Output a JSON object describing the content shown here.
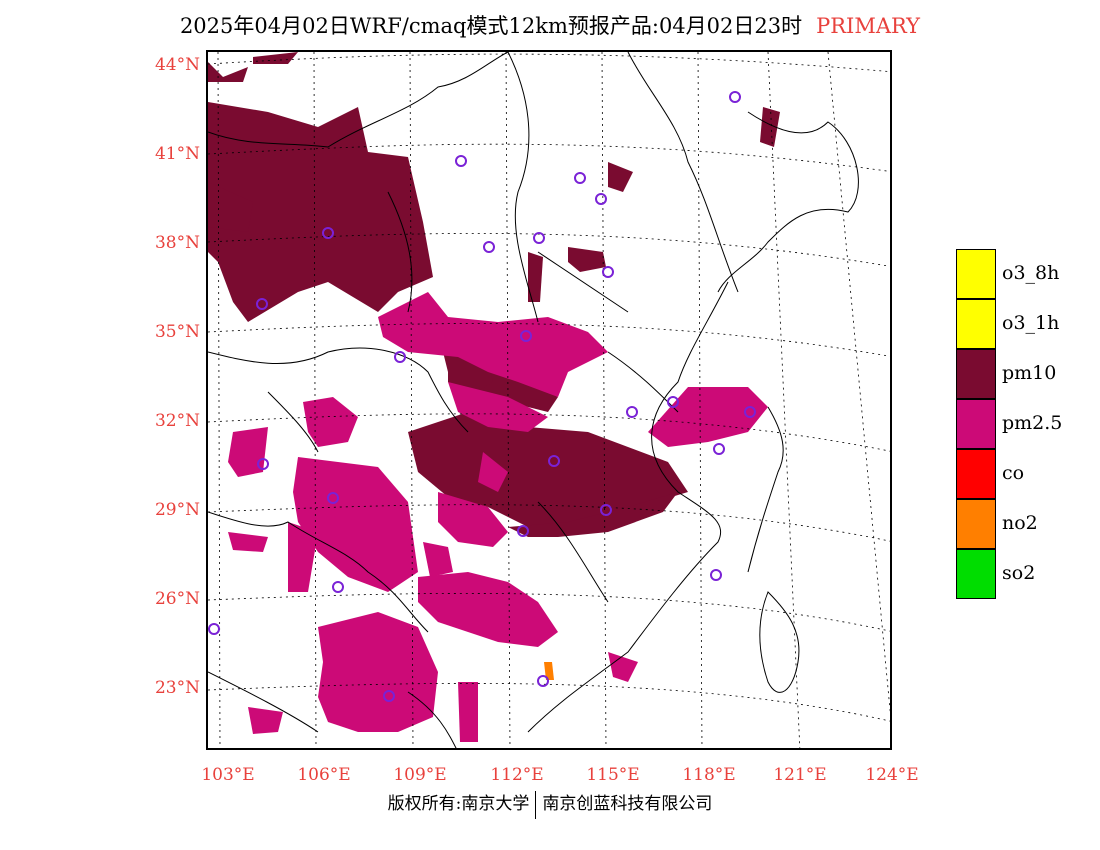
{
  "title": {
    "main": "2025年04月02日WRF/cmaq模式12km预报产品:04月02日23时",
    "tag": "PRIMARY"
  },
  "axes": {
    "y_labels": [
      "44°N",
      "41°N",
      "38°N",
      "35°N",
      "32°N",
      "29°N",
      "26°N",
      "23°N"
    ],
    "x_labels": [
      "103°E",
      "106°E",
      "109°E",
      "112°E",
      "115°E",
      "118°E",
      "121°E",
      "124°E"
    ]
  },
  "legend": [
    {
      "label": "o3_8h",
      "color": "#ffff00"
    },
    {
      "label": "o3_1h",
      "color": "#ffff00"
    },
    {
      "label": "pm10",
      "color": "#7a0b30"
    },
    {
      "label": "pm2.5",
      "color": "#cc0a77"
    },
    {
      "label": "co",
      "color": "#ff0000"
    },
    {
      "label": "no2",
      "color": "#ff7f00"
    },
    {
      "label": "so2",
      "color": "#00dd00"
    }
  ],
  "footer": {
    "left": "版权所有:南京大学",
    "right": "南京创蓝科技有限公司"
  }
}
